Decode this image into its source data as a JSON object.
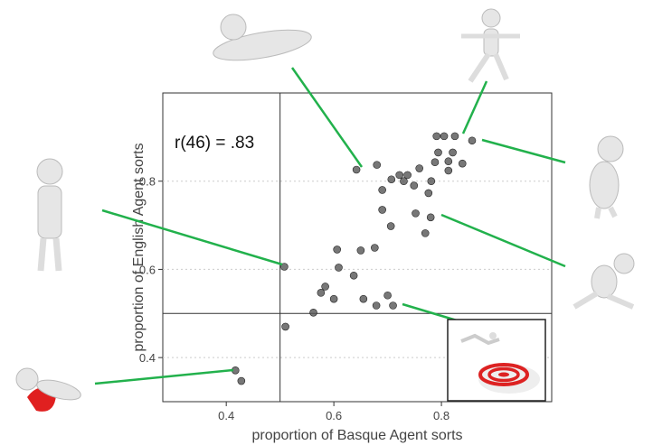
{
  "chart_data": {
    "type": "scatter",
    "annotation": "r(46) = .83",
    "xlabel": "proportion of Basque Agent sorts",
    "ylabel": "proportion of English Agent sorts",
    "color": "#555555",
    "xlim": [
      0.282,
      1.005
    ],
    "ylim": [
      0.3,
      1.0
    ],
    "xticks": [
      0.4,
      0.6,
      0.8
    ],
    "yticks": [
      0.4,
      0.6,
      0.8
    ],
    "grid": true,
    "reference_lines": {
      "x": 0.5,
      "y": 0.5
    },
    "x": [
      0.417,
      0.428,
      0.51,
      0.508,
      0.562,
      0.576,
      0.584,
      0.606,
      0.609,
      0.637,
      0.65,
      0.6,
      0.655,
      0.679,
      0.7,
      0.71,
      0.676,
      0.69,
      0.706,
      0.752,
      0.78,
      0.77,
      0.642,
      0.68,
      0.69,
      0.707,
      0.722,
      0.73,
      0.749,
      0.759,
      0.781,
      0.776,
      0.788,
      0.794,
      0.813,
      0.813,
      0.821,
      0.791,
      0.805,
      0.825,
      0.839,
      0.857,
      0.737
    ],
    "y": [
      0.371,
      0.347,
      0.47,
      0.606,
      0.502,
      0.547,
      0.561,
      0.645,
      0.604,
      0.586,
      0.643,
      0.533,
      0.533,
      0.518,
      0.541,
      0.518,
      0.649,
      0.735,
      0.698,
      0.727,
      0.718,
      0.682,
      0.826,
      0.837,
      0.78,
      0.804,
      0.814,
      0.8,
      0.79,
      0.829,
      0.8,
      0.773,
      0.843,
      0.865,
      0.845,
      0.824,
      0.865,
      0.902,
      0.902,
      0.902,
      0.84,
      0.892,
      0.814
    ]
  }
}
